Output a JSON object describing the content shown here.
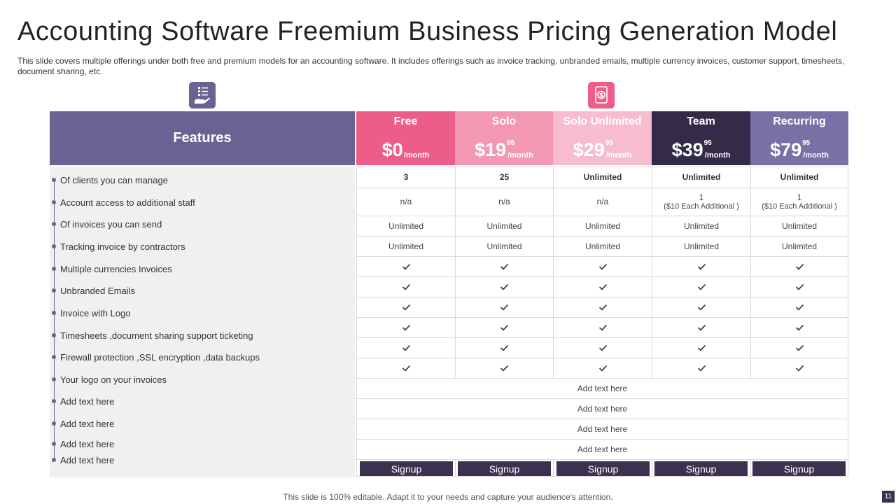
{
  "title": "Accounting Software Freemium Business Pricing Generation Model",
  "subtitle": "This slide covers multiple offerings under both free and premium models for an accounting software. It includes offerings such as invoice tracking, unbranded emails, multiple currency invoices, customer support, timesheets, document sharing, etc.",
  "icons": {
    "features": "list-in-hand-icon",
    "plans": "money-hand-icon"
  },
  "features_header": "Features",
  "features": [
    "Of clients you can manage",
    "Account access to additional staff",
    "Of invoices you can send",
    "Tracking invoice  by contractors",
    "Multiple currencies Invoices",
    "Unbranded  Emails",
    "Invoice  with Logo",
    "Timesheets ,document  sharing  support  ticketing",
    "Firewall  protection ,SSL encryption ,data backups",
    "Your logo on your invoices",
    "Add text here",
    "Add text here",
    "Add text here",
    "Add text here"
  ],
  "plans": [
    {
      "name": "Free",
      "price": "$0",
      "cents": "",
      "per": "/month",
      "color": "#ec5d87"
    },
    {
      "name": "Solo",
      "price": "$19",
      "cents": "95",
      "per": "/month",
      "color": "#f398b3"
    },
    {
      "name": "Solo Unlimited",
      "price": "$29",
      "cents": "95",
      "per": "/month",
      "color": "#f7bcd0"
    },
    {
      "name": "Team",
      "price": "$39",
      "cents": "95",
      "per": "/month",
      "color": "#332b48"
    },
    {
      "name": "Recurring",
      "price": "$79",
      "cents": "95",
      "per": "/month",
      "color": "#7a70a6"
    }
  ],
  "rows": {
    "clients": [
      "3",
      "25",
      "Unlimited",
      "Unlimited",
      "Unlimited"
    ],
    "staff": [
      {
        "main": "n/a",
        "sub": ""
      },
      {
        "main": "n/a",
        "sub": ""
      },
      {
        "main": "n/a",
        "sub": ""
      },
      {
        "main": "1",
        "sub": "($10 Each  Additional )"
      },
      {
        "main": "1",
        "sub": "($10 Each  Additional )"
      }
    ],
    "invoices": [
      "Unlimited",
      "Unlimited",
      "Unlimited",
      "Unlimited",
      "Unlimited"
    ],
    "tracking": [
      "Unlimited",
      "Unlimited",
      "Unlimited",
      "Unlimited",
      "Unlimited"
    ],
    "check_rows": 6,
    "add_text": [
      "Add text here",
      "Add text here",
      "Add text here",
      "Add text here"
    ]
  },
  "signup_label": "Signup",
  "footer": "This slide is 100% editable. Adapt it to your needs and capture your audience's attention.",
  "page_number": "11",
  "colors": {
    "primary": "#6a6292",
    "dark": "#3c3250",
    "accent": "#ec5d87"
  }
}
